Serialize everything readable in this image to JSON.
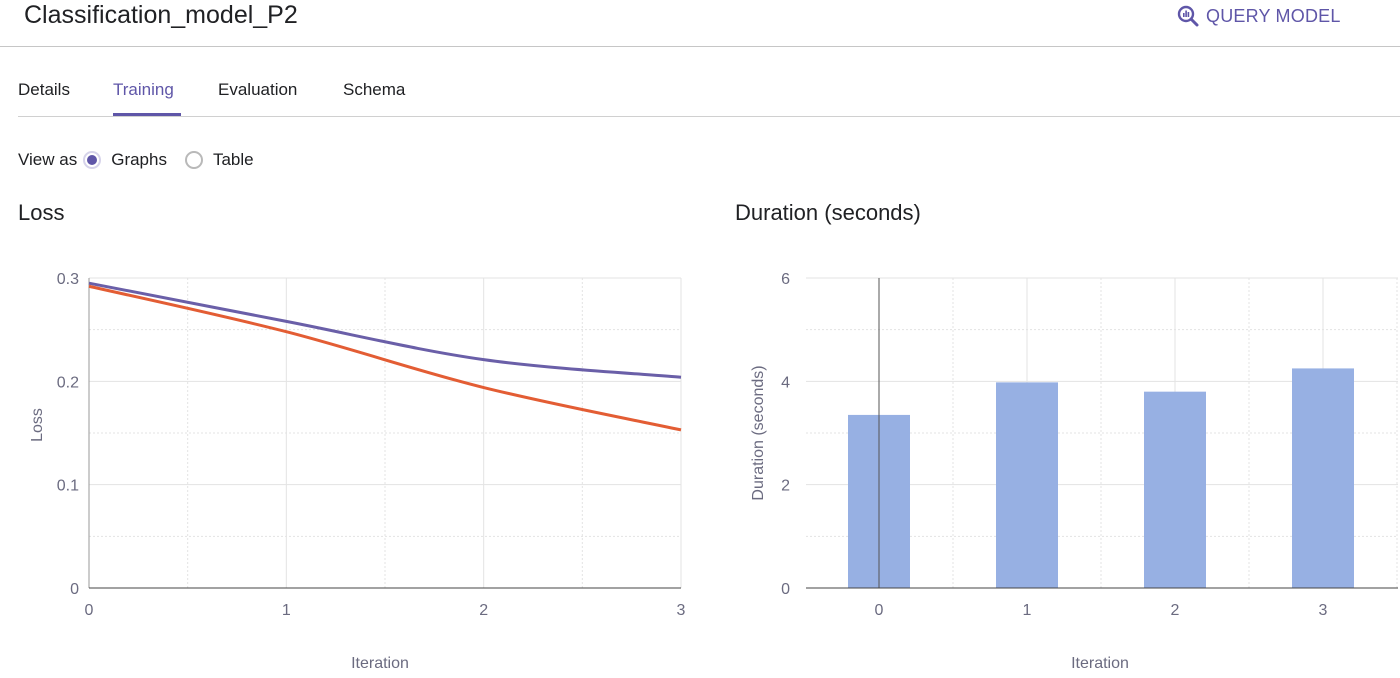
{
  "header": {
    "title": "Classification_model_P2",
    "query_button": {
      "label": "QUERY MODEL",
      "icon": "query-search-icon"
    }
  },
  "tabs": [
    {
      "label": "Details",
      "active": false
    },
    {
      "label": "Training",
      "active": true
    },
    {
      "label": "Evaluation",
      "active": false
    },
    {
      "label": "Schema",
      "active": false
    }
  ],
  "view_as": {
    "label": "View as",
    "options": [
      {
        "label": "Graphs",
        "selected": true
      },
      {
        "label": "Table",
        "selected": false
      }
    ]
  },
  "colors": {
    "accent": "#5f56a8",
    "loss_line_1": "#6a5fa8",
    "loss_line_2": "#e35d34",
    "bar_fill": "#97b0e3",
    "grid": "#e3e3e3"
  },
  "chart_data": [
    {
      "type": "line",
      "title": "Loss",
      "xlabel": "Iteration",
      "ylabel": "Loss",
      "x": [
        0,
        1,
        2,
        3
      ],
      "x_ticks": [
        "0",
        "1",
        "2",
        "3"
      ],
      "y_ticks": [
        "0",
        "0.1",
        "0.2",
        "0.3"
      ],
      "xlim": [
        0,
        3
      ],
      "ylim": [
        0,
        0.3
      ],
      "grid": true,
      "series": [
        {
          "values": [
            0.295,
            0.258,
            0.221,
            0.204
          ]
        },
        {
          "values": [
            0.292,
            0.248,
            0.194,
            0.153
          ]
        }
      ]
    },
    {
      "type": "bar",
      "title": "Duration (seconds)",
      "xlabel": "Iteration",
      "ylabel": "Duration (seconds)",
      "categories": [
        "0",
        "1",
        "2",
        "3"
      ],
      "values": [
        3.35,
        3.98,
        3.8,
        4.25
      ],
      "y_ticks": [
        "0",
        "2",
        "4",
        "6"
      ],
      "ylim": [
        0,
        6
      ],
      "grid": true
    }
  ]
}
